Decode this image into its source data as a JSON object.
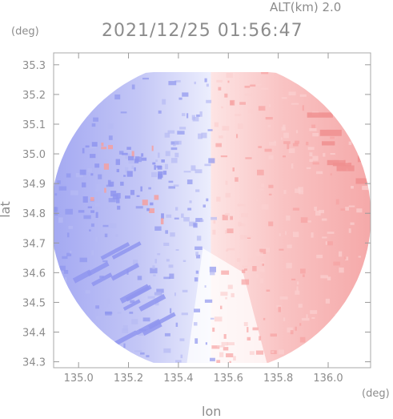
{
  "header": {
    "altitude": "ALT(km) 2.0",
    "timestamp": "2021/12/25 01:56:47"
  },
  "chart_data": {
    "type": "heatmap",
    "title": "2021/12/25 01:56:47",
    "xlabel": "lon",
    "ylabel": "lat",
    "x_unit": "(deg)",
    "y_unit": "(deg)",
    "xlim": [
      134.9,
      136.17
    ],
    "ylim": [
      34.28,
      35.34
    ],
    "xticks": [
      135.0,
      135.2,
      135.4,
      135.6,
      135.8,
      136.0
    ],
    "xtick_labels": [
      "135.0",
      "135.2",
      "135.4",
      "135.6",
      "135.8",
      "136.0"
    ],
    "yticks": [
      34.3,
      34.4,
      34.5,
      34.6,
      34.7,
      34.8,
      34.9,
      35.0,
      35.1,
      35.2,
      35.3
    ],
    "ytick_labels": [
      "34.3",
      "34.4",
      "34.5",
      "34.6",
      "34.7",
      "34.8",
      "34.9",
      "35.0",
      "35.1",
      "35.2",
      "35.3"
    ],
    "radar_center": [
      135.53,
      34.79
    ],
    "colors": {
      "receding": "#f6a3a3",
      "approaching": "#8f95ee",
      "near_zero": "#ffffff"
    }
  }
}
